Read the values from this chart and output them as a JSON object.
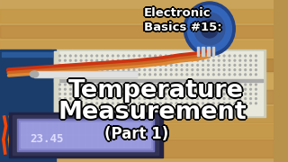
{
  "bg_color": "#b8914a",
  "title_line1": "Electronic",
  "title_line2": "Basics #15:",
  "main_line1": "Temperature",
  "main_line2": "Measurement",
  "sub_line": "(Part 1)",
  "lcd_text": "23.45",
  "wood_light": "#c9a45a",
  "wood_dark": "#9a7030",
  "wood_mid": "#b08040",
  "breadboard_color": "#d8d5c0",
  "breadboard_stripe": "#c8c5b0",
  "breadboard_dot": "#b0ae9a",
  "lcd_outer": "#444466",
  "lcd_bg": "#9090dd",
  "lcd_screen": "#aaaaee",
  "lcd_text_color": "#ddddff",
  "sensor_blue": "#3366bb",
  "sensor_dark": "#224488",
  "wire_red": "#cc3311",
  "wire_orange": "#dd6622",
  "pcb_color": "#334455",
  "arduino_green": "#2a6b3a",
  "text_white": "#ffffff",
  "text_black": "#000000",
  "title_fontsize": 9.5,
  "main_fontsize": 19.5,
  "sub_fontsize": 12
}
